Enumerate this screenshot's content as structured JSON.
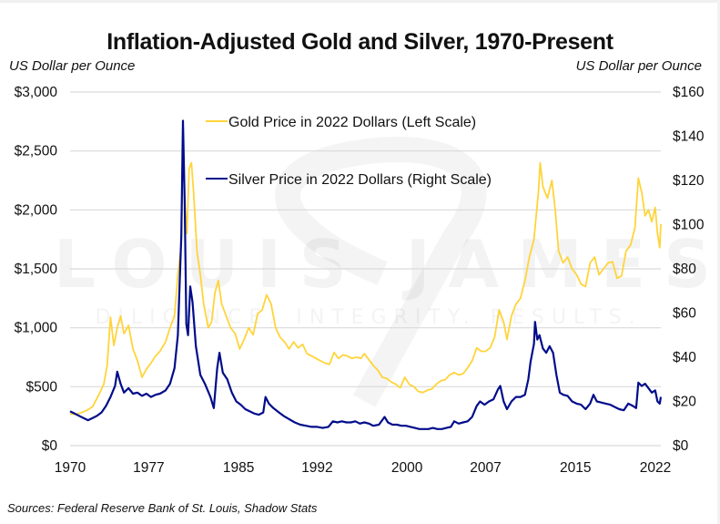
{
  "chart_data": {
    "type": "line",
    "title": "Inflation-Adjusted Gold and Silver, 1970-Present",
    "ylabel_left": "US Dollar per Ounce",
    "ylabel_right": "US Dollar per Ounce",
    "xlabel": "",
    "source": "Sources: Federal Reserve Bank of St. Louis, Shadow Stats",
    "watermark": {
      "brand": "LOUIS JAMES",
      "tagline": "DILIGENCE. INTEGRITY. RESULTS."
    },
    "xlim": [
      1970,
      2022.6
    ],
    "ylim_left": [
      0,
      3000
    ],
    "ylim_right": [
      0,
      160
    ],
    "grid": true,
    "legend_placement": "top-center",
    "x_ticks": [
      1970,
      1977,
      1985,
      1992,
      2000,
      2007,
      2015,
      2022
    ],
    "x_tick_labels": [
      "1970",
      "1977",
      "1985",
      "1992",
      "2000",
      "2007",
      "2015",
      "2022"
    ],
    "y_ticks_left": [
      0,
      500,
      1000,
      1500,
      2000,
      2500,
      3000
    ],
    "y_tick_labels_left": [
      "$0",
      "$500",
      "$1,000",
      "$1,500",
      "$2,000",
      "$2,500",
      "$3,000"
    ],
    "y_ticks_right": [
      0,
      20,
      40,
      60,
      80,
      100,
      120,
      140,
      160
    ],
    "y_tick_labels_right": [
      "$0",
      "$20",
      "$40",
      "$60",
      "$80",
      "$100",
      "$120",
      "$140",
      "$160"
    ],
    "series": [
      {
        "name": "Gold Price in 2022 Dollars (Left Scale)",
        "axis": "left",
        "color": "#FFD43B",
        "points": [
          [
            1970.0,
            270
          ],
          [
            1970.5,
            265
          ],
          [
            1971.0,
            280
          ],
          [
            1971.5,
            300
          ],
          [
            1972.0,
            330
          ],
          [
            1972.5,
            420
          ],
          [
            1973.0,
            520
          ],
          [
            1973.3,
            680
          ],
          [
            1973.6,
            1090
          ],
          [
            1973.9,
            850
          ],
          [
            1974.2,
            1000
          ],
          [
            1974.5,
            1100
          ],
          [
            1974.8,
            950
          ],
          [
            1975.2,
            1020
          ],
          [
            1975.6,
            820
          ],
          [
            1976.0,
            720
          ],
          [
            1976.4,
            580
          ],
          [
            1976.8,
            650
          ],
          [
            1977.2,
            700
          ],
          [
            1977.6,
            760
          ],
          [
            1978.0,
            800
          ],
          [
            1978.5,
            880
          ],
          [
            1978.9,
            1000
          ],
          [
            1979.3,
            1100
          ],
          [
            1979.6,
            1450
          ],
          [
            1979.9,
            1700
          ],
          [
            1980.05,
            2750
          ],
          [
            1980.2,
            2100
          ],
          [
            1980.4,
            1800
          ],
          [
            1980.6,
            2350
          ],
          [
            1980.8,
            2400
          ],
          [
            1981.0,
            2150
          ],
          [
            1981.3,
            1650
          ],
          [
            1981.6,
            1450
          ],
          [
            1981.9,
            1200
          ],
          [
            1982.3,
            1000
          ],
          [
            1982.6,
            1050
          ],
          [
            1982.9,
            1300
          ],
          [
            1983.2,
            1400
          ],
          [
            1983.5,
            1200
          ],
          [
            1983.9,
            1100
          ],
          [
            1984.3,
            1000
          ],
          [
            1984.7,
            950
          ],
          [
            1985.1,
            820
          ],
          [
            1985.5,
            900
          ],
          [
            1985.9,
            1000
          ],
          [
            1986.3,
            940
          ],
          [
            1986.7,
            1120
          ],
          [
            1987.1,
            1150
          ],
          [
            1987.5,
            1280
          ],
          [
            1987.9,
            1200
          ],
          [
            1988.3,
            1000
          ],
          [
            1988.7,
            920
          ],
          [
            1989.1,
            880
          ],
          [
            1989.5,
            820
          ],
          [
            1989.9,
            880
          ],
          [
            1990.3,
            830
          ],
          [
            1990.7,
            860
          ],
          [
            1991.1,
            780
          ],
          [
            1991.5,
            760
          ],
          [
            1991.9,
            740
          ],
          [
            1992.3,
            720
          ],
          [
            1992.7,
            700
          ],
          [
            1993.1,
            690
          ],
          [
            1993.5,
            790
          ],
          [
            1993.9,
            740
          ],
          [
            1994.3,
            770
          ],
          [
            1994.7,
            760
          ],
          [
            1995.1,
            740
          ],
          [
            1995.5,
            750
          ],
          [
            1995.9,
            740
          ],
          [
            1996.2,
            780
          ],
          [
            1996.6,
            730
          ],
          [
            1997.0,
            680
          ],
          [
            1997.4,
            640
          ],
          [
            1997.8,
            580
          ],
          [
            1998.2,
            570
          ],
          [
            1998.6,
            540
          ],
          [
            1999.0,
            520
          ],
          [
            1999.4,
            490
          ],
          [
            1999.8,
            580
          ],
          [
            2000.2,
            520
          ],
          [
            2000.6,
            500
          ],
          [
            2001.0,
            460
          ],
          [
            2001.4,
            450
          ],
          [
            2001.8,
            470
          ],
          [
            2002.2,
            480
          ],
          [
            2002.6,
            520
          ],
          [
            2003.0,
            550
          ],
          [
            2003.4,
            560
          ],
          [
            2003.8,
            600
          ],
          [
            2004.2,
            620
          ],
          [
            2004.6,
            600
          ],
          [
            2005.0,
            610
          ],
          [
            2005.4,
            660
          ],
          [
            2005.8,
            720
          ],
          [
            2006.2,
            830
          ],
          [
            2006.6,
            800
          ],
          [
            2007.0,
            800
          ],
          [
            2007.4,
            830
          ],
          [
            2007.8,
            920
          ],
          [
            2008.2,
            1150
          ],
          [
            2008.6,
            1050
          ],
          [
            2008.9,
            900
          ],
          [
            2009.3,
            1100
          ],
          [
            2009.7,
            1200
          ],
          [
            2010.1,
            1250
          ],
          [
            2010.5,
            1400
          ],
          [
            2010.9,
            1600
          ],
          [
            2011.3,
            1750
          ],
          [
            2011.7,
            2150
          ],
          [
            2011.85,
            2400
          ],
          [
            2012.1,
            2200
          ],
          [
            2012.5,
            2100
          ],
          [
            2012.9,
            2250
          ],
          [
            2013.2,
            2000
          ],
          [
            2013.5,
            1650
          ],
          [
            2013.9,
            1550
          ],
          [
            2014.3,
            1600
          ],
          [
            2014.7,
            1500
          ],
          [
            2015.1,
            1450
          ],
          [
            2015.5,
            1370
          ],
          [
            2015.9,
            1350
          ],
          [
            2016.3,
            1550
          ],
          [
            2016.7,
            1600
          ],
          [
            2017.1,
            1450
          ],
          [
            2017.5,
            1500
          ],
          [
            2017.9,
            1550
          ],
          [
            2018.3,
            1560
          ],
          [
            2018.7,
            1420
          ],
          [
            2019.1,
            1440
          ],
          [
            2019.5,
            1650
          ],
          [
            2019.9,
            1700
          ],
          [
            2020.3,
            1850
          ],
          [
            2020.6,
            2270
          ],
          [
            2020.9,
            2150
          ],
          [
            2021.2,
            1950
          ],
          [
            2021.5,
            2000
          ],
          [
            2021.8,
            1900
          ],
          [
            2022.1,
            2020
          ],
          [
            2022.3,
            1800
          ],
          [
            2022.5,
            1680
          ],
          [
            2022.6,
            1880
          ]
        ]
      },
      {
        "name": "Silver Price in 2022 Dollars (Right Scale)",
        "axis": "right",
        "color": "#000C8A",
        "points": [
          [
            1970.0,
            15.5
          ],
          [
            1970.4,
            14.5
          ],
          [
            1970.8,
            13.5
          ],
          [
            1971.2,
            12.5
          ],
          [
            1971.6,
            11.5
          ],
          [
            1972.0,
            12.5
          ],
          [
            1972.4,
            13.5
          ],
          [
            1972.8,
            15.0
          ],
          [
            1973.2,
            18.0
          ],
          [
            1973.6,
            22.0
          ],
          [
            1974.0,
            27.0
          ],
          [
            1974.2,
            33.5
          ],
          [
            1974.5,
            28.0
          ],
          [
            1974.8,
            24.0
          ],
          [
            1975.2,
            26.0
          ],
          [
            1975.6,
            23.5
          ],
          [
            1976.0,
            24.0
          ],
          [
            1976.4,
            22.5
          ],
          [
            1976.8,
            23.5
          ],
          [
            1977.2,
            22.0
          ],
          [
            1977.6,
            23.0
          ],
          [
            1978.0,
            23.5
          ],
          [
            1978.5,
            25.0
          ],
          [
            1978.9,
            28.0
          ],
          [
            1979.3,
            35.0
          ],
          [
            1979.6,
            50.0
          ],
          [
            1979.9,
            95.0
          ],
          [
            1980.05,
            147.0
          ],
          [
            1980.2,
            110.0
          ],
          [
            1980.35,
            55.0
          ],
          [
            1980.5,
            50.0
          ],
          [
            1980.7,
            72.0
          ],
          [
            1980.9,
            65.0
          ],
          [
            1981.2,
            45.0
          ],
          [
            1981.6,
            32.0
          ],
          [
            1982.0,
            28.0
          ],
          [
            1982.5,
            22.0
          ],
          [
            1982.8,
            17.0
          ],
          [
            1983.1,
            35.0
          ],
          [
            1983.3,
            42.0
          ],
          [
            1983.6,
            33.0
          ],
          [
            1984.0,
            30.0
          ],
          [
            1984.4,
            24.0
          ],
          [
            1984.8,
            20.0
          ],
          [
            1985.2,
            18.5
          ],
          [
            1985.6,
            16.5
          ],
          [
            1986.0,
            15.5
          ],
          [
            1986.4,
            14.5
          ],
          [
            1986.8,
            14.0
          ],
          [
            1987.2,
            15.0
          ],
          [
            1987.4,
            22.0
          ],
          [
            1987.7,
            19.0
          ],
          [
            1988.1,
            17.0
          ],
          [
            1988.6,
            15.0
          ],
          [
            1989.0,
            13.5
          ],
          [
            1989.5,
            12.0
          ],
          [
            1990.0,
            10.5
          ],
          [
            1990.5,
            9.5
          ],
          [
            1991.0,
            9.0
          ],
          [
            1991.5,
            8.5
          ],
          [
            1992.0,
            8.5
          ],
          [
            1992.5,
            8.0
          ],
          [
            1993.0,
            8.5
          ],
          [
            1993.4,
            11.0
          ],
          [
            1993.8,
            10.5
          ],
          [
            1994.2,
            11.0
          ],
          [
            1994.6,
            10.5
          ],
          [
            1995.0,
            10.5
          ],
          [
            1995.4,
            11.0
          ],
          [
            1995.8,
            10.0
          ],
          [
            1996.2,
            10.5
          ],
          [
            1996.6,
            10.0
          ],
          [
            1997.0,
            9.0
          ],
          [
            1997.5,
            9.5
          ],
          [
            1998.0,
            13.0
          ],
          [
            1998.3,
            10.5
          ],
          [
            1998.7,
            9.5
          ],
          [
            1999.1,
            9.5
          ],
          [
            1999.5,
            9.0
          ],
          [
            1999.9,
            9.0
          ],
          [
            2000.3,
            8.5
          ],
          [
            2000.7,
            8.0
          ],
          [
            2001.1,
            7.5
          ],
          [
            2001.5,
            7.5
          ],
          [
            2001.9,
            7.5
          ],
          [
            2002.3,
            8.0
          ],
          [
            2002.7,
            7.5
          ],
          [
            2003.1,
            7.5
          ],
          [
            2003.5,
            8.0
          ],
          [
            2003.9,
            8.5
          ],
          [
            2004.2,
            11.0
          ],
          [
            2004.6,
            10.0
          ],
          [
            2005.0,
            10.5
          ],
          [
            2005.4,
            11.0
          ],
          [
            2005.8,
            13.0
          ],
          [
            2006.2,
            18.0
          ],
          [
            2006.5,
            20.0
          ],
          [
            2006.9,
            18.5
          ],
          [
            2007.3,
            20.0
          ],
          [
            2007.7,
            21.0
          ],
          [
            2008.1,
            25.5
          ],
          [
            2008.3,
            27.0
          ],
          [
            2008.6,
            20.0
          ],
          [
            2008.9,
            16.5
          ],
          [
            2009.3,
            20.0
          ],
          [
            2009.7,
            22.0
          ],
          [
            2010.1,
            22.0
          ],
          [
            2010.5,
            23.0
          ],
          [
            2010.8,
            30.0
          ],
          [
            2011.0,
            38.0
          ],
          [
            2011.3,
            46.0
          ],
          [
            2011.4,
            56.0
          ],
          [
            2011.6,
            48.0
          ],
          [
            2011.8,
            50.0
          ],
          [
            2012.1,
            44.0
          ],
          [
            2012.4,
            42.0
          ],
          [
            2012.7,
            45.0
          ],
          [
            2013.0,
            42.0
          ],
          [
            2013.3,
            32.0
          ],
          [
            2013.6,
            24.0
          ],
          [
            2013.9,
            23.0
          ],
          [
            2014.3,
            22.5
          ],
          [
            2014.7,
            20.0
          ],
          [
            2015.1,
            19.0
          ],
          [
            2015.5,
            18.5
          ],
          [
            2015.9,
            16.5
          ],
          [
            2016.3,
            19.0
          ],
          [
            2016.6,
            23.0
          ],
          [
            2016.9,
            20.0
          ],
          [
            2017.3,
            19.5
          ],
          [
            2017.7,
            19.0
          ],
          [
            2018.1,
            18.5
          ],
          [
            2018.5,
            17.5
          ],
          [
            2018.9,
            16.5
          ],
          [
            2019.3,
            16.0
          ],
          [
            2019.7,
            19.0
          ],
          [
            2020.1,
            18.0
          ],
          [
            2020.4,
            17.0
          ],
          [
            2020.6,
            28.5
          ],
          [
            2020.9,
            27.0
          ],
          [
            2021.2,
            28.0
          ],
          [
            2021.5,
            26.0
          ],
          [
            2021.8,
            24.0
          ],
          [
            2022.1,
            25.0
          ],
          [
            2022.3,
            20.0
          ],
          [
            2022.5,
            19.0
          ],
          [
            2022.6,
            22.0
          ]
        ]
      }
    ]
  }
}
